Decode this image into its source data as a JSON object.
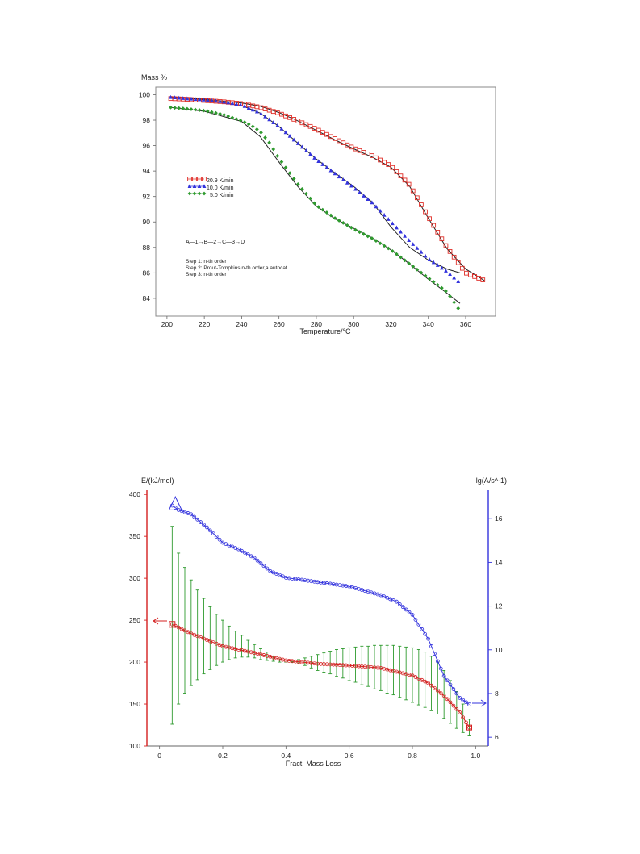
{
  "chart_data": [
    {
      "type": "scatter",
      "title": "",
      "ylabel": "Mass %",
      "xlabel": "Temperature/°C",
      "xlim": [
        194,
        376
      ],
      "ylim": [
        82.6,
        100.6
      ],
      "xticks": [
        200,
        220,
        240,
        260,
        280,
        300,
        320,
        340,
        360
      ],
      "yticks": [
        84,
        86,
        88,
        90,
        92,
        94,
        96,
        98,
        100
      ],
      "legend_position": "middle-left",
      "series": [
        {
          "name": "20.9 K/min",
          "marker": "square",
          "color": "#e0302a",
          "x": [
            202,
            210,
            220,
            230,
            240,
            250,
            260,
            270,
            280,
            290,
            300,
            310,
            320,
            330,
            340,
            350,
            360,
            370
          ],
          "y": [
            99.7,
            99.65,
            99.55,
            99.45,
            99.3,
            99.0,
            98.55,
            97.95,
            97.3,
            96.55,
            95.8,
            95.2,
            94.4,
            92.9,
            90.4,
            88.0,
            86.0,
            85.4
          ],
          "fit_x": [
            202,
            220,
            240,
            250,
            260,
            270,
            280,
            290,
            300,
            310,
            320,
            330,
            340,
            350,
            360,
            370
          ],
          "fit_y": [
            99.8,
            99.65,
            99.35,
            99.1,
            98.6,
            97.95,
            97.2,
            96.45,
            95.75,
            95.1,
            94.3,
            92.8,
            90.3,
            87.9,
            86.3,
            85.4
          ]
        },
        {
          "name": "10.0 K/min",
          "marker": "triangle",
          "color": "#3333dd",
          "x": [
            202,
            210,
            220,
            230,
            240,
            250,
            260,
            270,
            280,
            290,
            300,
            310,
            320,
            330,
            340,
            350,
            357
          ],
          "y": [
            99.8,
            99.7,
            99.6,
            99.45,
            99.2,
            98.55,
            97.5,
            96.2,
            94.9,
            93.8,
            92.7,
            91.5,
            90.0,
            88.5,
            87.1,
            86.1,
            85.2
          ],
          "fit_x": [
            202,
            220,
            240,
            250,
            260,
            270,
            280,
            290,
            300,
            310,
            320,
            330,
            340,
            350,
            357
          ],
          "fit_y": [
            99.85,
            99.6,
            99.15,
            98.55,
            97.5,
            96.2,
            94.95,
            93.85,
            92.8,
            91.55,
            89.6,
            88.0,
            87.0,
            86.3,
            86.0
          ]
        },
        {
          "name": "5.0 K/min",
          "marker": "diamond",
          "color": "#2e9a2e",
          "x": [
            202,
            210,
            220,
            230,
            240,
            245,
            250,
            255,
            260,
            270,
            280,
            290,
            300,
            310,
            320,
            330,
            340,
            350,
            357
          ],
          "y": [
            99.0,
            98.9,
            98.75,
            98.45,
            97.95,
            97.6,
            97.1,
            96.2,
            95.0,
            93.0,
            91.3,
            90.3,
            89.45,
            88.7,
            87.8,
            86.7,
            85.6,
            84.5,
            83.0
          ],
          "fit_x": [
            202,
            220,
            240,
            250,
            260,
            270,
            280,
            290,
            300,
            310,
            320,
            330,
            340,
            350,
            357
          ],
          "fit_y": [
            99.0,
            98.7,
            97.9,
            96.7,
            94.7,
            92.8,
            91.25,
            90.25,
            89.5,
            88.75,
            87.8,
            86.7,
            85.5,
            84.4,
            83.6
          ]
        }
      ],
      "annotations": [
        "A—1→B—2→C—3→D",
        "Step 1: n-th order",
        "Step 2: Prout-Tompkins n-th order,a autocat",
        "Step 3: n-th order"
      ]
    },
    {
      "type": "scatter",
      "title": "",
      "xlabel": "Fract. Mass Loss",
      "ylabel_left": "E/(kJ/mol)",
      "ylabel_right": "lg(A/s^-1)",
      "xlim": [
        -0.04,
        1.04
      ],
      "ylim_left": [
        100,
        405
      ],
      "ylim_right": [
        5.6,
        17.3
      ],
      "xticks": [
        0,
        0.2,
        0.4,
        0.6,
        0.8,
        1.0
      ],
      "xtick_labels": [
        "0",
        "0.2",
        "0.4",
        "0.6",
        "0.8",
        "1.0"
      ],
      "yticks_left": [
        100,
        150,
        200,
        250,
        300,
        350,
        400
      ],
      "yticks_right": [
        6,
        8,
        10,
        12,
        14,
        16
      ],
      "left_axis_color": "#d42020",
      "right_axis_color": "#3333dd",
      "errorbar_color": "#2e9a2e",
      "series": [
        {
          "name": "E",
          "axis": "left",
          "color": "#d42020",
          "x": [
            0.04,
            0.1,
            0.2,
            0.3,
            0.4,
            0.5,
            0.6,
            0.7,
            0.8,
            0.85,
            0.9,
            0.95,
            0.98
          ],
          "y": [
            245,
            234,
            219,
            211,
            202,
            198,
            196,
            193,
            184,
            175,
            160,
            140,
            122
          ]
        },
        {
          "name": "lgA",
          "axis": "right",
          "color": "#3333dd",
          "x": [
            0.04,
            0.06,
            0.1,
            0.15,
            0.2,
            0.25,
            0.3,
            0.35,
            0.4,
            0.5,
            0.6,
            0.7,
            0.75,
            0.8,
            0.85,
            0.9,
            0.95,
            0.98
          ],
          "y": [
            16.6,
            16.4,
            16.2,
            15.6,
            14.9,
            14.6,
            14.2,
            13.6,
            13.3,
            13.1,
            12.9,
            12.5,
            12.2,
            11.6,
            10.5,
            8.8,
            7.8,
            7.5
          ]
        }
      ],
      "error_bars": {
        "x": [
          0.04,
          0.06,
          0.08,
          0.1,
          0.12,
          0.14,
          0.16,
          0.18,
          0.2,
          0.22,
          0.24,
          0.26,
          0.28,
          0.3,
          0.32,
          0.34,
          0.36,
          0.38,
          0.4,
          0.42,
          0.44,
          0.46,
          0.48,
          0.5,
          0.52,
          0.54,
          0.56,
          0.58,
          0.6,
          0.62,
          0.64,
          0.66,
          0.68,
          0.7,
          0.72,
          0.74,
          0.76,
          0.78,
          0.8,
          0.82,
          0.84,
          0.86,
          0.88,
          0.9,
          0.92,
          0.94,
          0.96,
          0.98
        ],
        "upper": [
          362,
          330,
          313,
          298,
          286,
          276,
          266,
          257,
          250,
          243,
          237,
          232,
          226,
          221,
          216,
          212,
          207,
          204,
          200,
          201,
          203,
          205,
          207,
          209,
          211,
          213,
          215,
          216,
          217,
          218,
          219,
          219,
          220,
          220,
          220,
          220,
          219,
          218,
          217,
          215,
          212,
          207,
          200,
          190,
          178,
          165,
          150,
          132
        ],
        "lower": [
          126,
          150,
          163,
          172,
          179,
          186,
          191,
          196,
          200,
          203,
          205,
          206,
          206,
          205,
          203,
          202,
          201,
          200,
          200,
          200,
          199,
          196,
          193,
          190,
          188,
          186,
          183,
          181,
          178,
          176,
          173,
          171,
          168,
          166,
          163,
          161,
          158,
          155,
          152,
          149,
          146,
          142,
          138,
          133,
          127,
          121,
          116,
          112
        ]
      }
    }
  ]
}
